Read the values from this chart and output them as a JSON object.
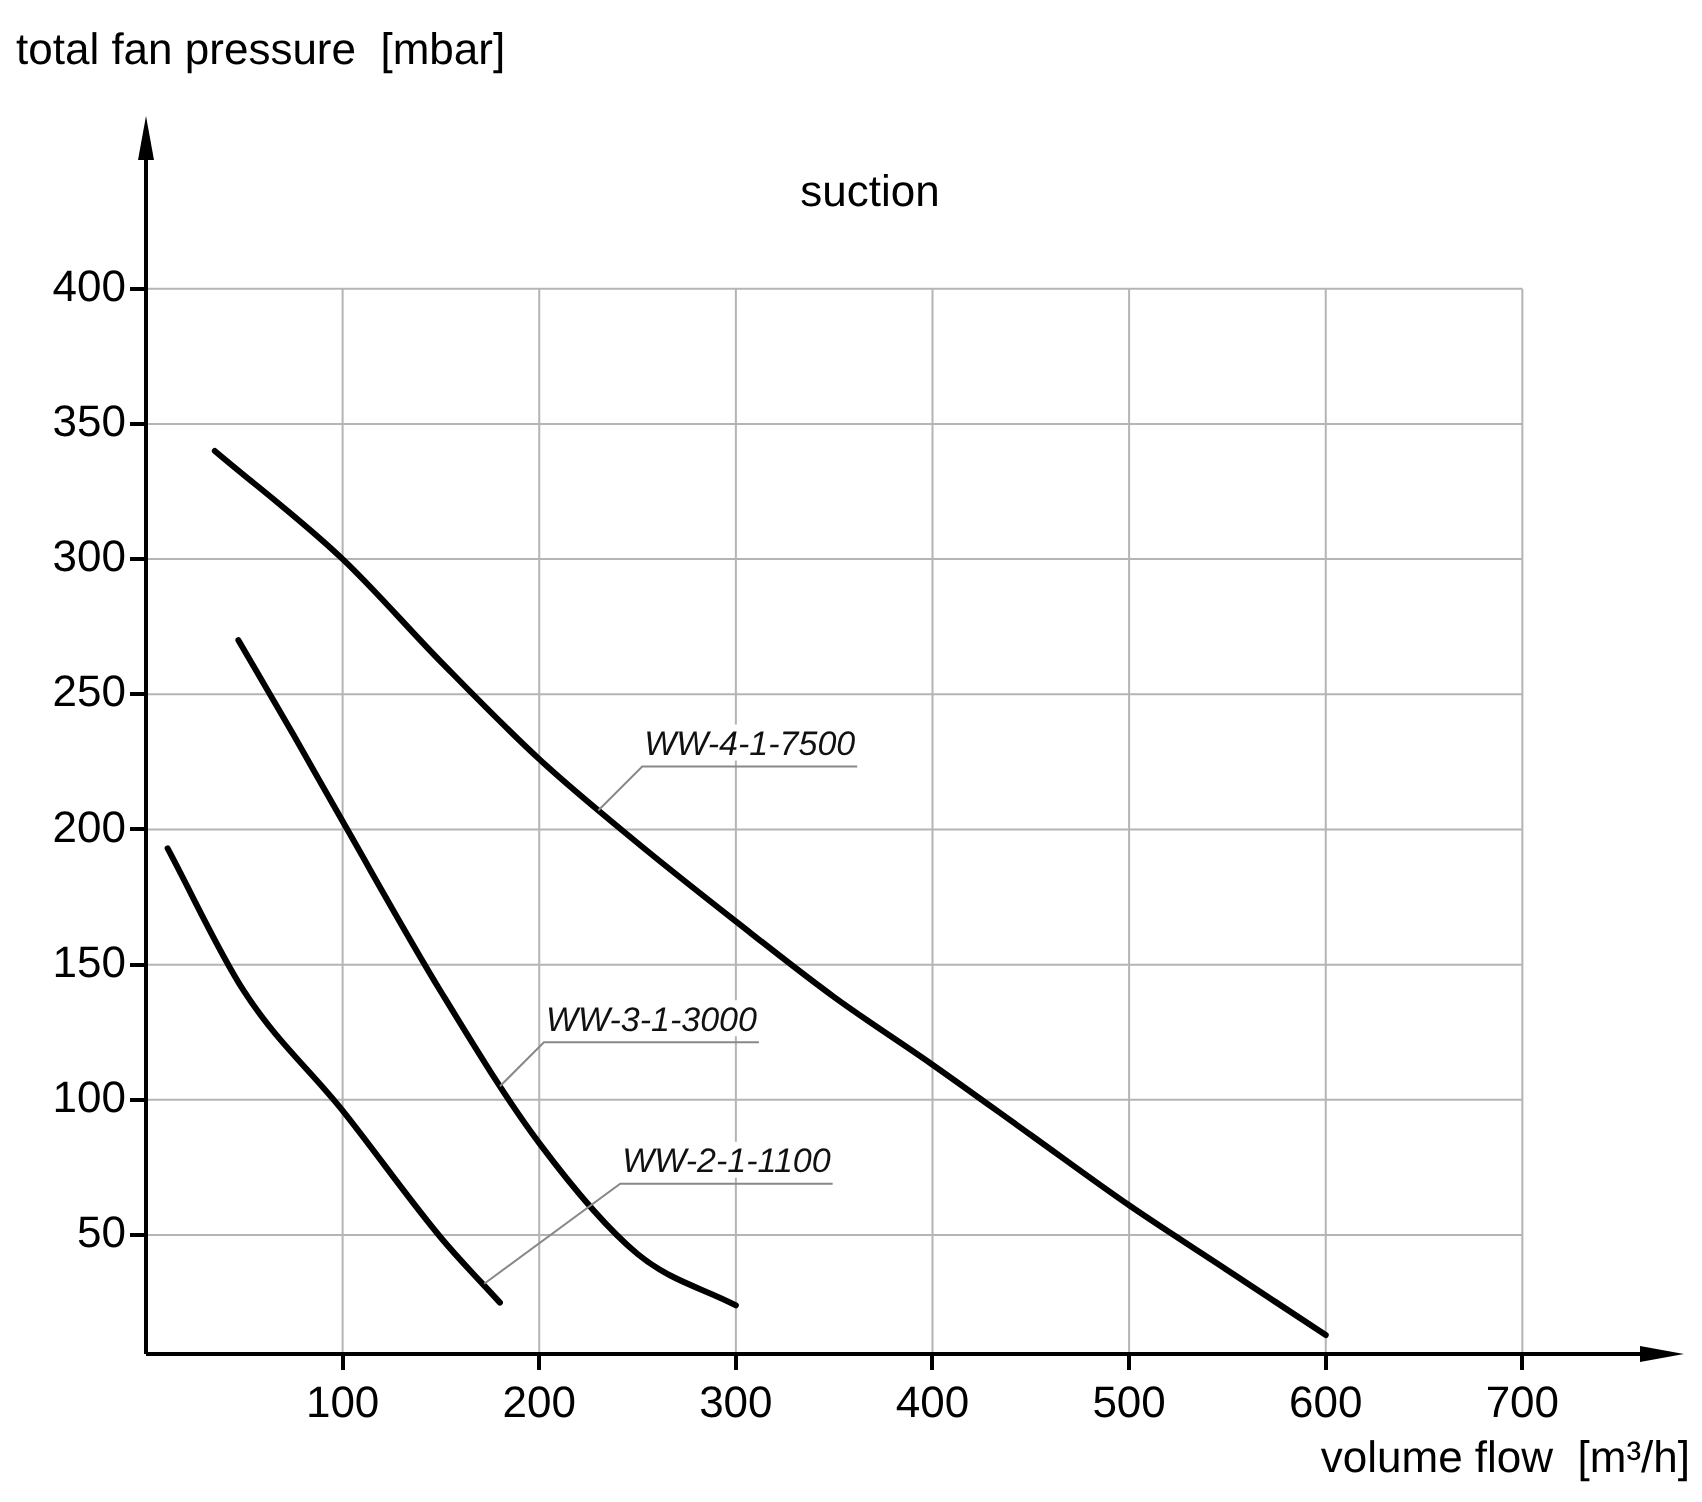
{
  "chart_data": {
    "type": "line",
    "title": "suction",
    "xlabel": "volume flow  [m³/h]",
    "ylabel": "total fan pressure  [mbar]",
    "xlim": [
      0,
      770
    ],
    "ylim": [
      6,
      455
    ],
    "xticks": [
      100,
      200,
      300,
      400,
      500,
      600,
      700
    ],
    "yticks": [
      50,
      100,
      150,
      200,
      250,
      300,
      350,
      400
    ],
    "grid": true,
    "legend": false,
    "series": [
      {
        "color": "#000000",
        "x": [
          35,
          100,
          150,
          200,
          250,
          300,
          350,
          400,
          450,
          500,
          550,
          600
        ],
        "values": [
          340,
          300,
          262,
          226,
          195,
          166,
          138,
          113,
          87,
          61,
          37,
          13
        ]
      },
      {
        "color": "#000000",
        "x": [
          47,
          75,
          100,
          150,
          200,
          250,
          300
        ],
        "values": [
          270,
          235,
          203,
          140,
          84,
          43,
          24
        ]
      },
      {
        "color": "#000000",
        "x": [
          11,
          50,
          100,
          150,
          180
        ],
        "values": [
          193,
          140,
          96,
          49,
          25
        ]
      }
    ],
    "annotations": [
      {
        "text": "WW-4-1-7500",
        "x": 230,
        "y": 207
      },
      {
        "text": "WW-3-1-3000",
        "x": 180,
        "y": 105
      },
      {
        "text": "WW-2-1-1100",
        "x": 172,
        "y": 32
      }
    ]
  }
}
